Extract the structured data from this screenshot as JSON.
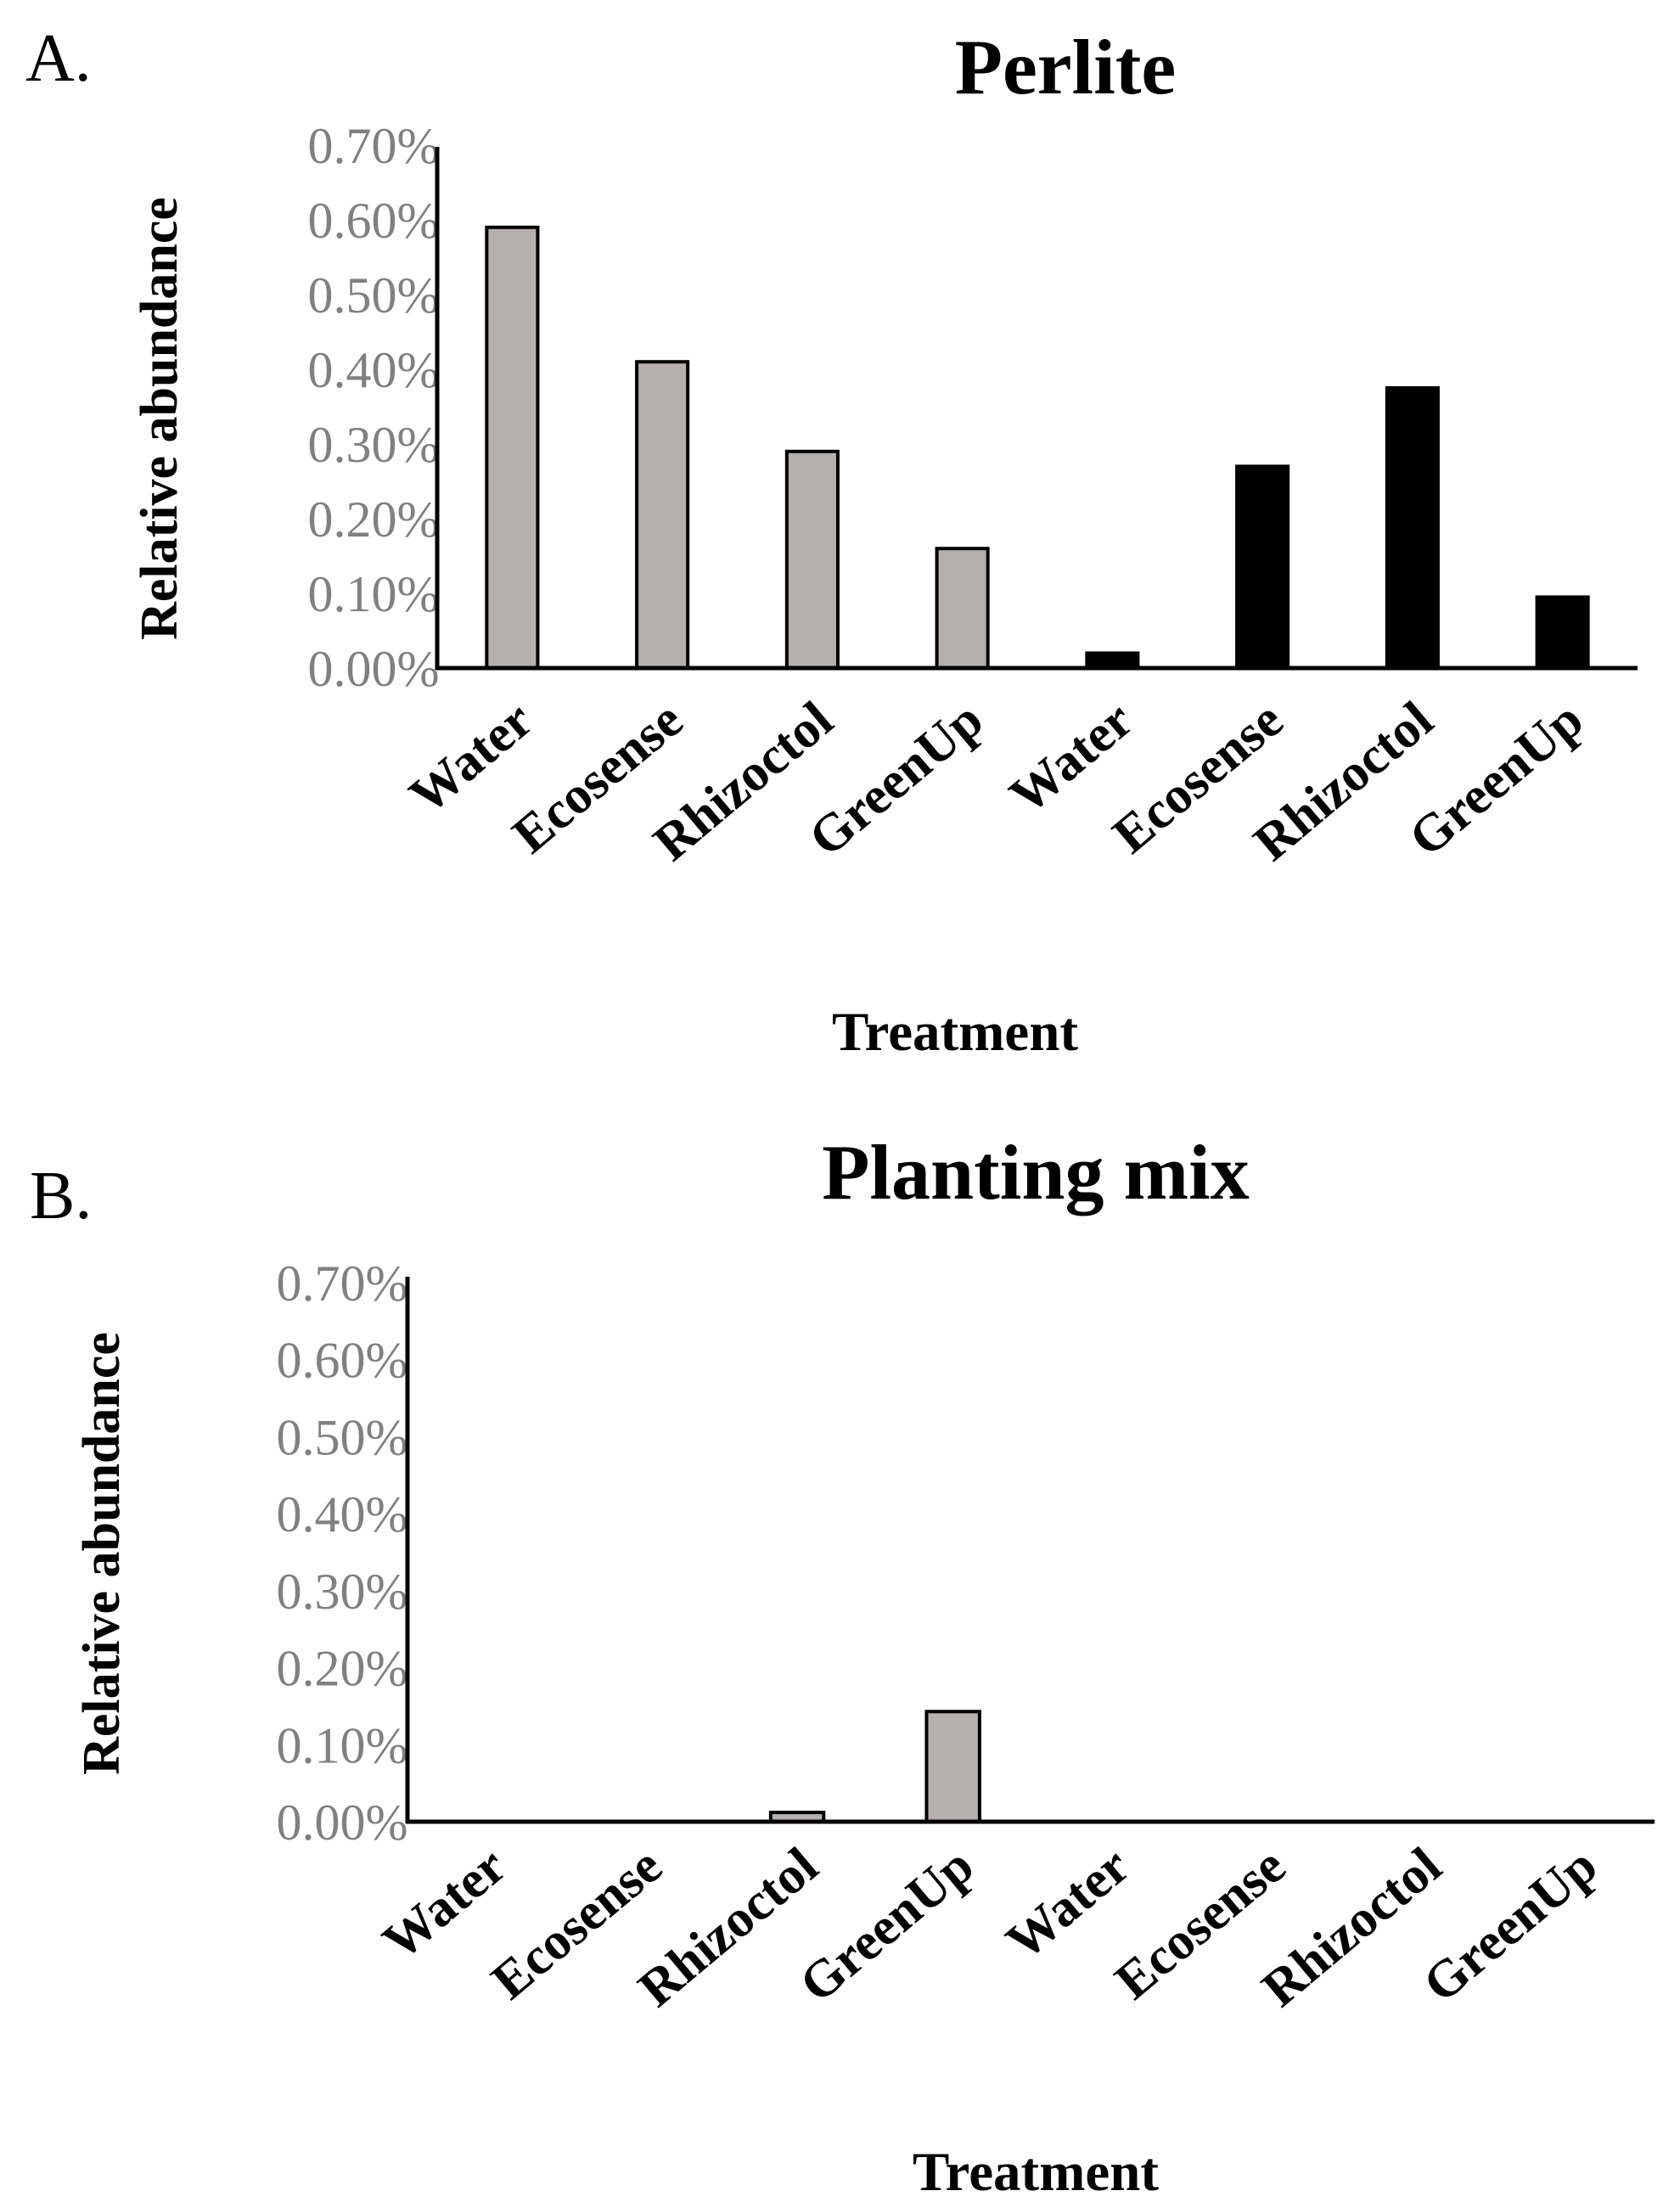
{
  "charts": [
    {
      "panel_label": "A.",
      "title": "Perlite",
      "ylabel": "Relative abundance",
      "xlabel": "Treatment",
      "ytick_labels": [
        "0.00%",
        "0.10%",
        "0.20%",
        "0.30%",
        "0.40%",
        "0.50%",
        "0.60%",
        "0.70%"
      ]
    },
    {
      "panel_label": "B.",
      "title": "Planting mix",
      "ylabel": "Relative abundance",
      "xlabel": "Treatment",
      "ytick_labels": [
        "0.00%",
        "0.10%",
        "0.20%",
        "0.30%",
        "0.40%",
        "0.50%",
        "0.60%",
        "0.70%"
      ]
    }
  ],
  "chart_data": [
    {
      "type": "bar",
      "title": "Perlite",
      "xlabel": "Treatment",
      "ylabel": "Relative abundance",
      "categories": [
        "Water",
        "Ecosense",
        "Rhizoctol",
        "GreenUp",
        "Water",
        "Ecosense",
        "Rhizoctol",
        "GreenUp"
      ],
      "values": [
        0.59,
        0.41,
        0.29,
        0.16,
        0.02,
        0.27,
        0.375,
        0.095
      ],
      "bar_colors": [
        "#b3b0ad",
        "#b3b0ad",
        "#b3b0ad",
        "#b3b0ad",
        "#000000",
        "#000000",
        "#000000",
        "#000000"
      ],
      "ylim": [
        0,
        0.7
      ],
      "yunit": "%",
      "grid": false
    },
    {
      "type": "bar",
      "title": "Planting mix",
      "xlabel": "Treatment",
      "ylabel": "Relative abundance",
      "categories": [
        "Water",
        "Ecosense",
        "Rhizoctol",
        "GreenUp",
        "Water",
        "Ecosense",
        "Rhizoctol",
        "GreenUp"
      ],
      "values": [
        0,
        0,
        0.012,
        0.143,
        0,
        0,
        0,
        0
      ],
      "bar_colors": [
        "#b3b0ad",
        "#b3b0ad",
        "#b3b0ad",
        "#b3b0ad",
        "#000000",
        "#000000",
        "#000000",
        "#000000"
      ],
      "ylim": [
        0,
        0.7
      ],
      "yunit": "%",
      "grid": false
    }
  ]
}
